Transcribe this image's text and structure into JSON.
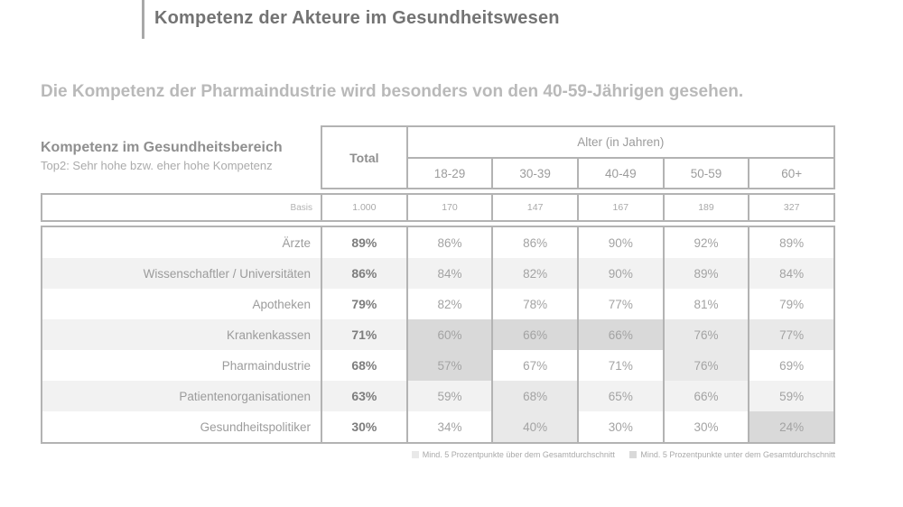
{
  "header": {
    "title": "Kompetenz der Akteure im Gesundheitswesen",
    "key_finding": "Die Kompetenz der Pharmaindustrie wird besonders von den 40-59-Jährigen gesehen."
  },
  "table": {
    "section_title": "Kompetenz im Gesundheitsbereich",
    "section_subtitle": "Top2: Sehr hohe bzw. eher hohe Kompetenz",
    "total_label": "Total",
    "age_group_label": "Alter (in Jahren)",
    "age_columns": [
      "18-29",
      "30-39",
      "40-49",
      "50-59",
      "60+"
    ],
    "basis_label": "Basis",
    "basis_total": "1.000",
    "basis_values": [
      "170",
      "147",
      "167",
      "189",
      "327"
    ],
    "rows": [
      {
        "label": "Ärzte",
        "total": "89%",
        "values": [
          "86%",
          "86%",
          "90%",
          "92%",
          "89%"
        ],
        "highlights": [
          null,
          null,
          null,
          null,
          null
        ]
      },
      {
        "label": "Wissenschaftler / Universitäten",
        "total": "86%",
        "values": [
          "84%",
          "82%",
          "90%",
          "89%",
          "84%"
        ],
        "highlights": [
          null,
          null,
          null,
          null,
          null
        ]
      },
      {
        "label": "Apotheken",
        "total": "79%",
        "values": [
          "82%",
          "78%",
          "77%",
          "81%",
          "79%"
        ],
        "highlights": [
          null,
          null,
          null,
          null,
          null
        ]
      },
      {
        "label": "Krankenkassen",
        "total": "71%",
        "values": [
          "60%",
          "66%",
          "66%",
          "76%",
          "77%"
        ],
        "highlights": [
          "under",
          "under",
          "under",
          "over",
          "over"
        ]
      },
      {
        "label": "Pharmaindustrie",
        "total": "68%",
        "values": [
          "57%",
          "67%",
          "71%",
          "76%",
          "69%"
        ],
        "highlights": [
          "under",
          null,
          null,
          "over",
          null
        ]
      },
      {
        "label": "Patientenorganisationen",
        "total": "63%",
        "values": [
          "59%",
          "68%",
          "65%",
          "66%",
          "59%"
        ],
        "highlights": [
          null,
          "over",
          null,
          null,
          null
        ]
      },
      {
        "label": "Gesundheitspolitiker",
        "total": "30%",
        "values": [
          "34%",
          "40%",
          "30%",
          "30%",
          "24%"
        ],
        "highlights": [
          null,
          "over",
          null,
          null,
          "under"
        ]
      }
    ]
  },
  "legend": {
    "over_label": "Mind. 5 Prozentpunkte über dem Gesamtdurchschnitt",
    "under_label": "Mind. 5 Prozentpunkte unter dem Gesamtdurchschnitt"
  },
  "colors": {
    "border": "#b3b3b3",
    "row_stripe": "#f2f2f2",
    "highlight_over": "#e9e9e9",
    "highlight_under": "#d9d9d9",
    "accent_bar": "#a8a8a8"
  }
}
